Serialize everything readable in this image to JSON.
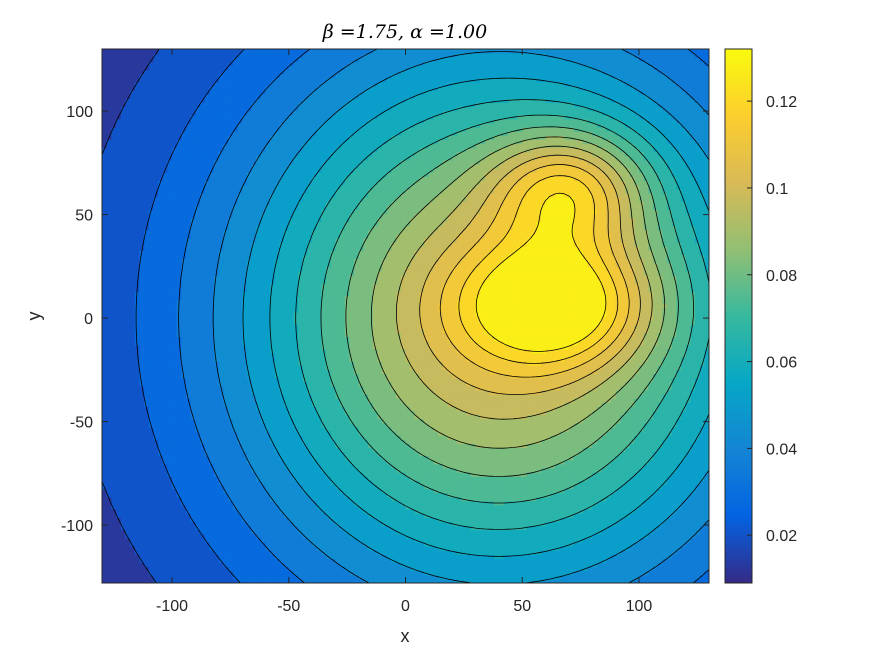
{
  "chart_data": {
    "type": "contour",
    "title": "β =1.75, α =1.00",
    "xlabel": "x",
    "ylabel": "y",
    "xlim": [
      -130,
      130
    ],
    "ylim": [
      -128,
      130
    ],
    "xticks": [
      -100,
      -50,
      0,
      50,
      100
    ],
    "yticks": [
      -100,
      -50,
      0,
      50,
      100
    ],
    "xtick_labels": [
      "-100",
      "-50",
      "0",
      "50",
      "100"
    ],
    "ytick_labels": [
      "-100",
      "-50",
      "0",
      "50",
      "100"
    ],
    "colorbar": {
      "range": [
        0.009,
        0.132
      ],
      "ticks": [
        0.02,
        0.04,
        0.06,
        0.08,
        0.1,
        0.12
      ],
      "tick_labels": [
        "0.02",
        "0.04",
        "0.06",
        "0.08",
        "0.1",
        "0.12"
      ],
      "colormap": "parula"
    },
    "contour_levels": [
      0.0166,
      0.0243,
      0.0319,
      0.0396,
      0.0473,
      0.0549,
      0.0626,
      0.0703,
      0.0779,
      0.0856,
      0.0933,
      0.101,
      0.1086,
      0.1163,
      0.124
    ],
    "peaks": [
      {
        "x": 70,
        "y": 62,
        "value": 0.132
      },
      {
        "x": 65,
        "y": 7,
        "value": 0.131
      }
    ],
    "grid": false
  }
}
